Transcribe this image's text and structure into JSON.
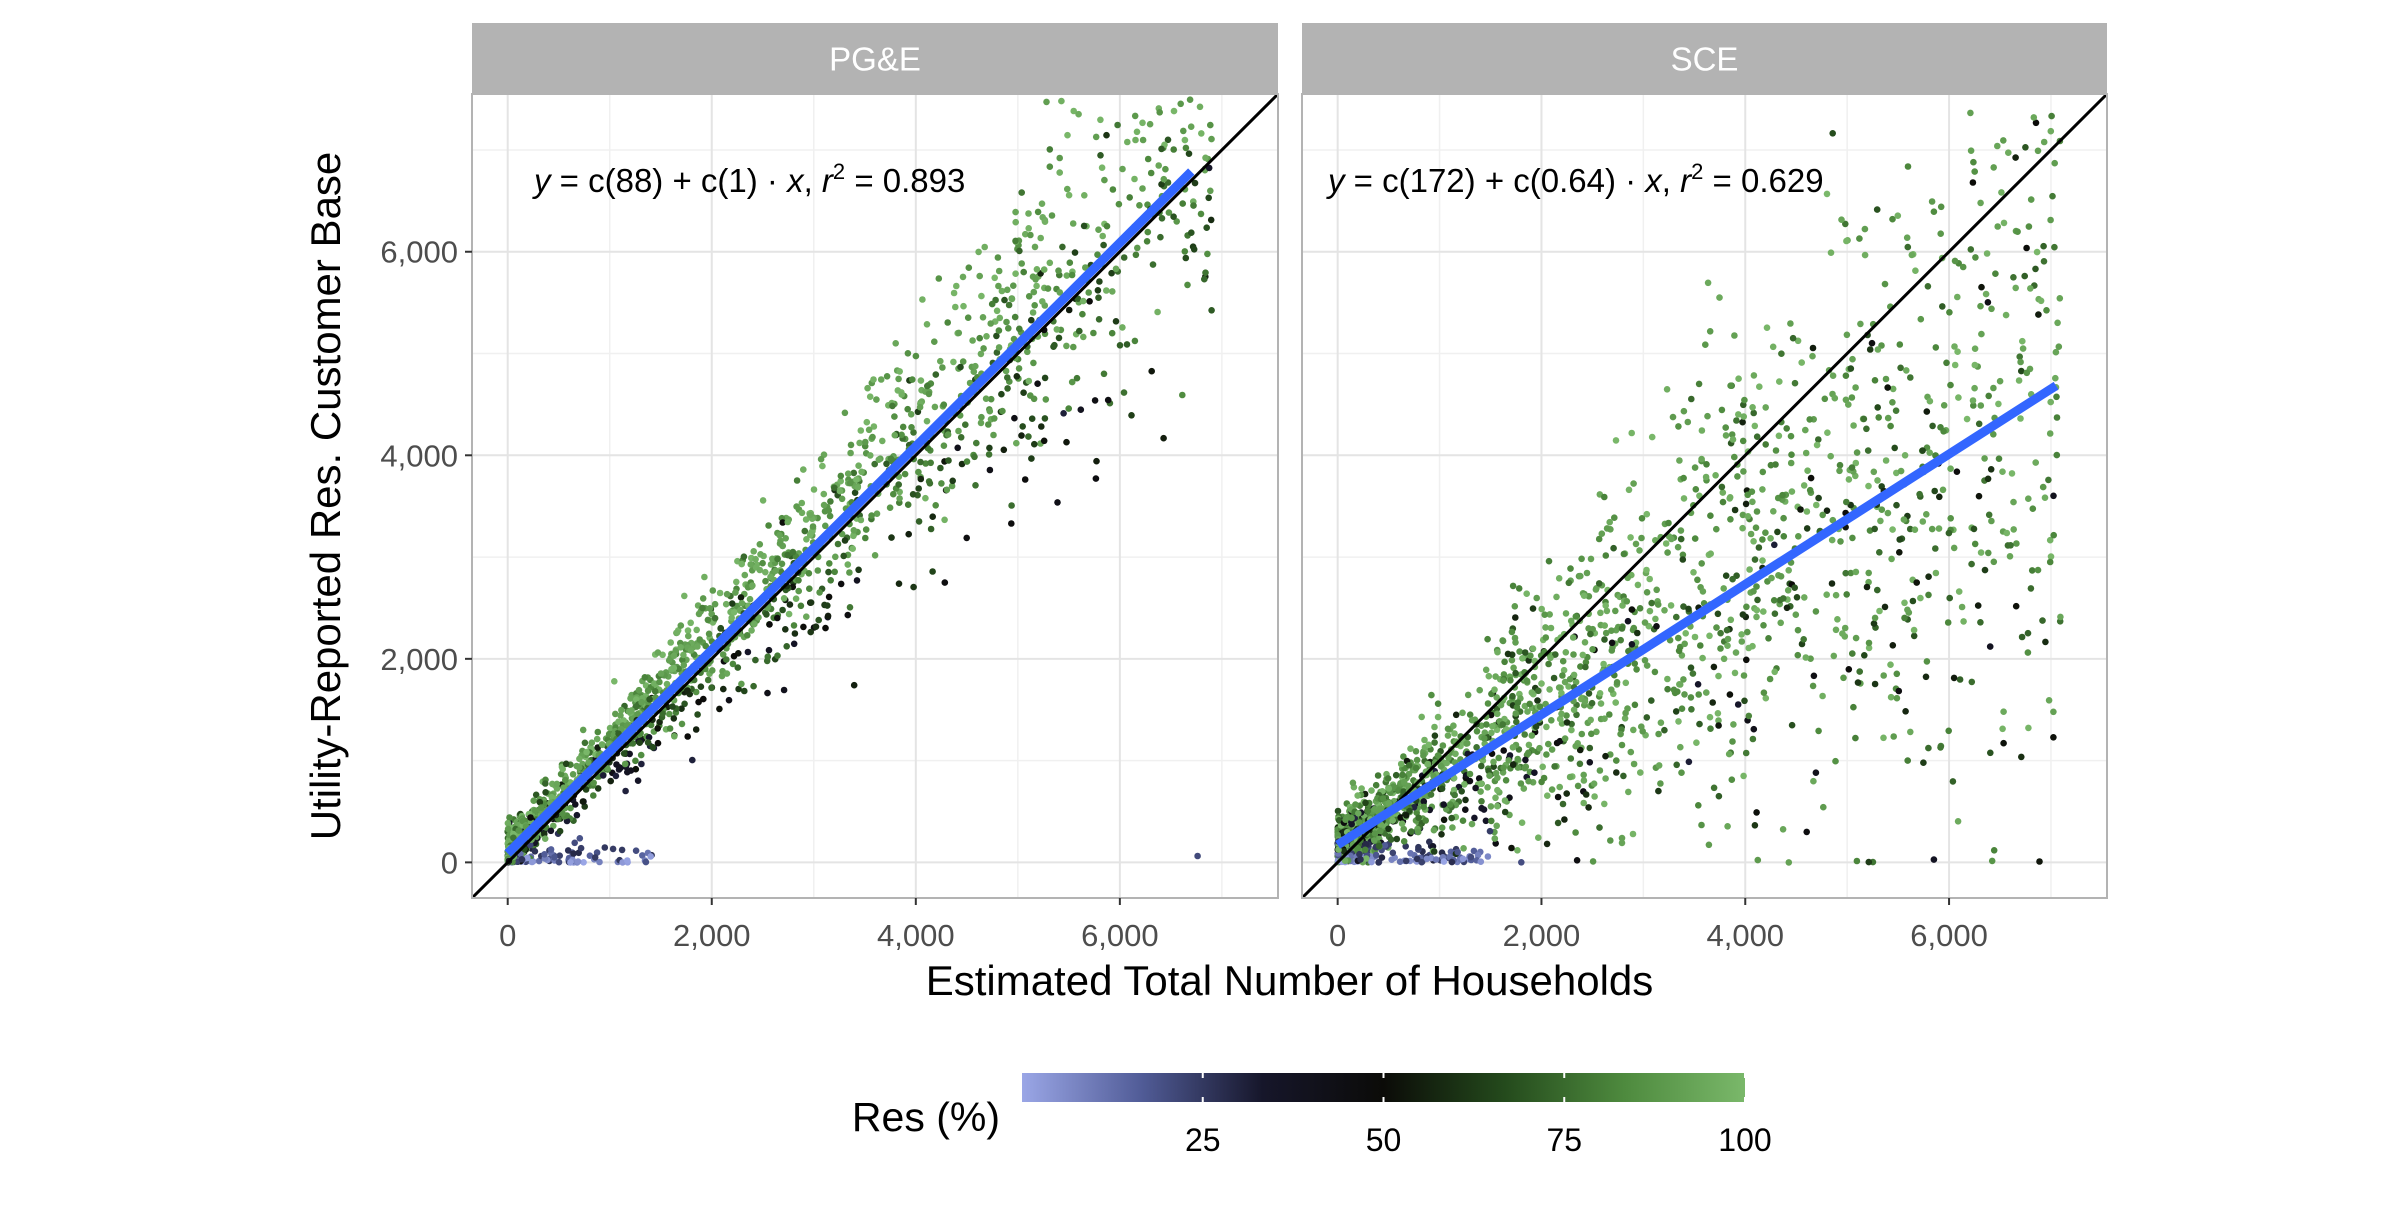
{
  "chart_data": {
    "type": "scatter",
    "xlabel": "Estimated Total Number of Households",
    "ylabel": "Utility-Reported Res. Customer Base",
    "xlim": [
      -350,
      7550
    ],
    "ylim": [
      -350,
      7550
    ],
    "x_ticks": [
      0,
      2000,
      4000,
      6000
    ],
    "x_tick_labels": [
      "0",
      "2,000",
      "4,000",
      "6,000"
    ],
    "y_ticks": [
      0,
      2000,
      4000,
      6000
    ],
    "y_tick_labels": [
      "0",
      "2,000",
      "4,000",
      "6,000"
    ],
    "grid": true,
    "reference_line": "y = x",
    "colorbar": {
      "title": "Res (%)",
      "placement": "bottom",
      "range": [
        0,
        100
      ],
      "ticks": [
        25,
        50,
        75,
        100
      ],
      "tick_labels": [
        "25",
        "50",
        "75",
        "100"
      ],
      "colors": [
        "#9aa6e6",
        "#505b96",
        "#16162a",
        "#0b0b08",
        "#244a1c",
        "#4e8a3e",
        "#7ab86a"
      ]
    },
    "panels": [
      {
        "name": "PG&E",
        "equation": {
          "y": "y",
          "eq": " = c(88) + c(1) · ",
          "x": "x",
          "sep": ",  ",
          "r": "r",
          "sup": "2",
          "rest": " = 0.893"
        },
        "fit": {
          "intercept": 88,
          "slope": 1.0,
          "x_range": [
            0,
            6700
          ]
        },
        "point_model": {
          "seed": 12345,
          "count": 1800,
          "x_max": 6900,
          "mean_slope": 1.03,
          "mean_intercept": 95,
          "noise_frac": 0.12,
          "noise_min": 120
        }
      },
      {
        "name": "SCE",
        "equation": {
          "y": "y",
          "eq": " = c(172) + c(0.64) · ",
          "x": "x",
          "sep": ",  ",
          "r": "r",
          "sup": "2",
          "rest": " = 0.629"
        },
        "fit": {
          "intercept": 172,
          "slope": 0.64,
          "x_range": [
            0,
            7050
          ]
        },
        "point_model": {
          "seed": 67890,
          "count": 2100,
          "x_max": 7100,
          "mean_slope": 0.68,
          "mean_intercept": 180,
          "noise_frac": 0.3,
          "noise_min": 160
        }
      }
    ]
  }
}
